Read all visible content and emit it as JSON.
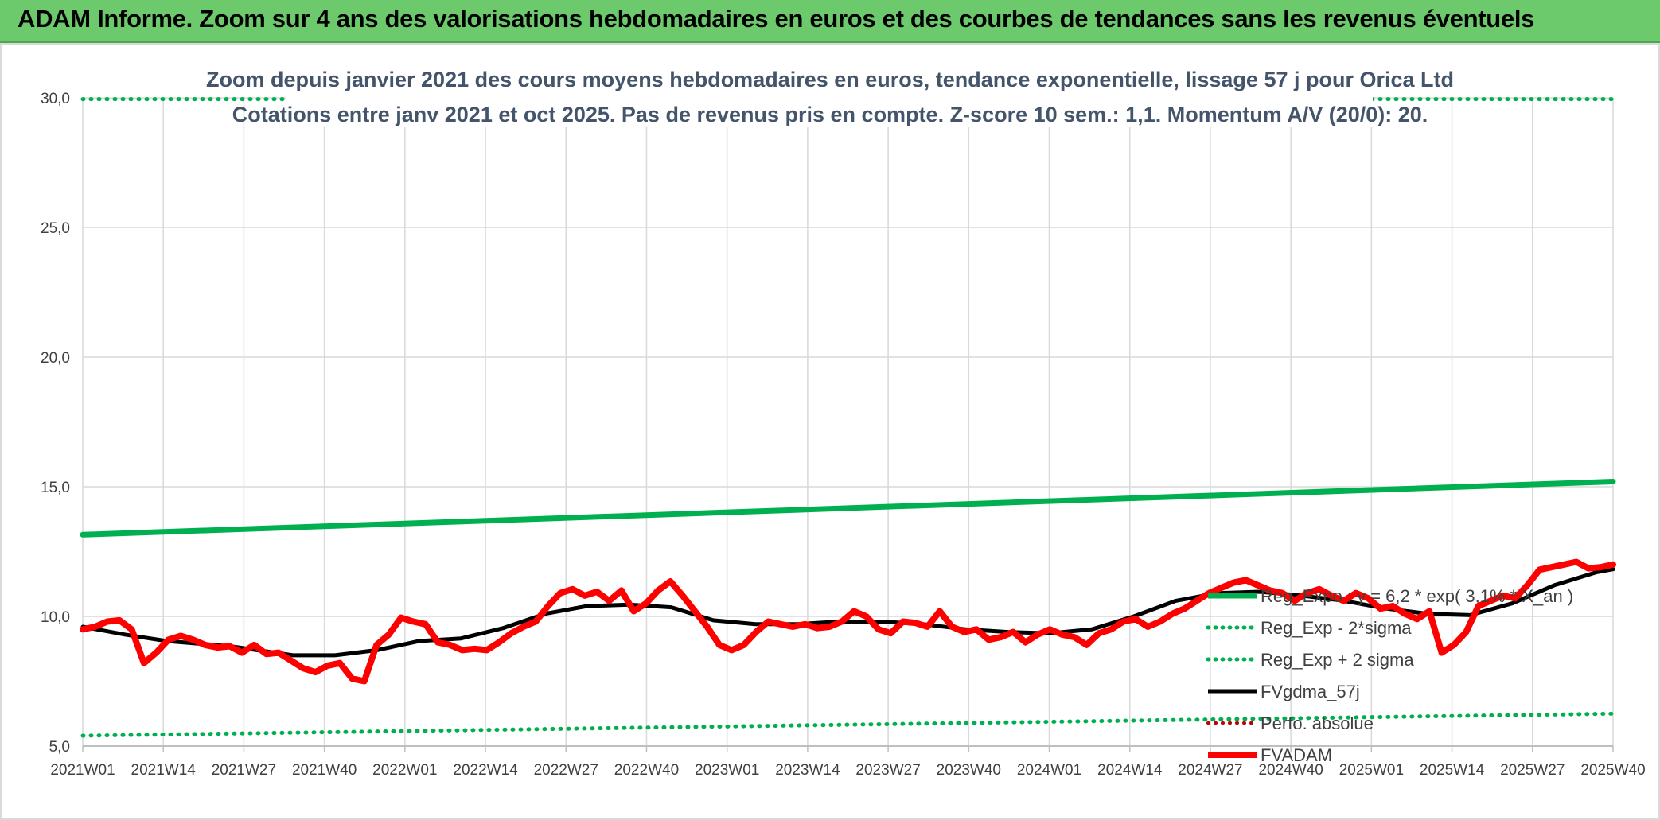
{
  "banner": {
    "title": "ADAM Informe. Zoom sur 4 ans des valorisations hebdomadaires en euros et des courbes de tendances sans les revenus éventuels"
  },
  "chart_data": {
    "type": "line",
    "title_lines": [
      "Zoom depuis janvier 2021 des cours moyens hebdomadaires en euros, tendance exponentielle, lissage 57 j pour Orica Ltd",
      "Cotations entre janv 2021 et oct 2025. Pas de revenus pris en compte. Z-score 10 sem.: 1,1. Momentum A/V (20/0): 20."
    ],
    "xlabel": "",
    "ylabel": "",
    "ylim": [
      5,
      30
    ],
    "yticks": [
      "5,0",
      "10,0",
      "15,0",
      "20,0",
      "25,0",
      "30,0"
    ],
    "ytick_values": [
      5,
      10,
      15,
      20,
      25,
      30
    ],
    "x_tick_labels": [
      "2021W01",
      "2021W14",
      "2021W27",
      "2021W40",
      "2022W01",
      "2022W14",
      "2022W27",
      "2022W40",
      "2023W01",
      "2023W14",
      "2023W27",
      "2023W40",
      "2024W01",
      "2024W14",
      "2024W27",
      "2024W40",
      "2025W01",
      "2025W14",
      "2025W27",
      "2025W40"
    ],
    "weeks_count": 247,
    "grid": true,
    "legend_position": "right",
    "series": [
      {
        "name": "Reg_Expo : y = 6,2 * exp( 3,1% *  X_an )",
        "style": "solid",
        "color": "#00b050",
        "width": 7,
        "knots": [
          [
            0,
            13.15
          ],
          [
            246,
            15.2
          ]
        ]
      },
      {
        "name": "Reg_Exp - 2*sigma",
        "style": "dotted",
        "color": "#00b050",
        "width": 5,
        "knots": [
          [
            0,
            5.4
          ],
          [
            246,
            6.25
          ]
        ]
      },
      {
        "name": "Reg_Exp + 2 sigma",
        "style": "dotted",
        "color": "#00b050",
        "width": 5,
        "knots": [
          [
            0,
            29.95
          ],
          [
            246,
            29.95
          ]
        ]
      },
      {
        "name": "FVgdma_57j",
        "style": "solid",
        "color": "#000000",
        "width": 5,
        "knots": [
          [
            0,
            9.6
          ],
          [
            10,
            9.3
          ],
          [
            20,
            9.05
          ],
          [
            35,
            8.85
          ],
          [
            50,
            8.5
          ],
          [
            60,
            8.5
          ],
          [
            70,
            8.7
          ],
          [
            80,
            9.05
          ],
          [
            90,
            9.15
          ],
          [
            100,
            9.55
          ],
          [
            110,
            10.1
          ],
          [
            120,
            10.4
          ],
          [
            130,
            10.45
          ],
          [
            140,
            10.35
          ],
          [
            150,
            9.85
          ],
          [
            160,
            9.7
          ],
          [
            170,
            9.7
          ],
          [
            180,
            9.8
          ],
          [
            190,
            9.8
          ],
          [
            200,
            9.7
          ],
          [
            210,
            9.5
          ],
          [
            220,
            9.4
          ],
          [
            230,
            9.35
          ],
          [
            240,
            9.5
          ],
          [
            250,
            10.0
          ],
          [
            260,
            10.6
          ],
          [
            270,
            10.9
          ],
          [
            280,
            10.95
          ],
          [
            290,
            10.8
          ],
          [
            300,
            10.6
          ],
          [
            310,
            10.3
          ],
          [
            320,
            10.1
          ],
          [
            330,
            10.05
          ],
          [
            340,
            10.5
          ],
          [
            350,
            11.2
          ],
          [
            360,
            11.7
          ],
          [
            364,
            11.82
          ]
        ]
      },
      {
        "name": "Perfo. absolue",
        "style": "dotted",
        "color": "#c00000",
        "width": 4,
        "knots": []
      },
      {
        "name": "FVADAM",
        "style": "solid",
        "color": "#ff0000",
        "width": 8,
        "knots": [
          [
            0,
            9.5
          ],
          [
            3,
            9.6
          ],
          [
            6,
            9.8
          ],
          [
            9,
            9.85
          ],
          [
            12,
            9.5
          ],
          [
            15,
            8.2
          ],
          [
            18,
            8.6
          ],
          [
            21,
            9.1
          ],
          [
            24,
            9.25
          ],
          [
            27,
            9.1
          ],
          [
            30,
            8.9
          ],
          [
            33,
            8.8
          ],
          [
            36,
            8.85
          ],
          [
            39,
            8.6
          ],
          [
            42,
            8.9
          ],
          [
            45,
            8.55
          ],
          [
            48,
            8.6
          ],
          [
            51,
            8.3
          ],
          [
            54,
            8.0
          ],
          [
            57,
            7.85
          ],
          [
            60,
            8.1
          ],
          [
            63,
            8.2
          ],
          [
            66,
            7.6
          ],
          [
            69,
            7.5
          ],
          [
            72,
            8.9
          ],
          [
            75,
            9.3
          ],
          [
            78,
            9.95
          ],
          [
            81,
            9.8
          ],
          [
            84,
            9.7
          ],
          [
            87,
            9.0
          ],
          [
            90,
            8.9
          ],
          [
            93,
            8.7
          ],
          [
            96,
            8.75
          ],
          [
            99,
            8.7
          ],
          [
            102,
            9.0
          ],
          [
            105,
            9.35
          ],
          [
            108,
            9.6
          ],
          [
            111,
            9.8
          ],
          [
            114,
            10.4
          ],
          [
            117,
            10.9
          ],
          [
            120,
            11.05
          ],
          [
            123,
            10.8
          ],
          [
            126,
            10.95
          ],
          [
            129,
            10.6
          ],
          [
            132,
            11.0
          ],
          [
            135,
            10.2
          ],
          [
            138,
            10.5
          ],
          [
            141,
            11.0
          ],
          [
            144,
            11.35
          ],
          [
            147,
            10.8
          ],
          [
            150,
            10.2
          ],
          [
            153,
            9.6
          ],
          [
            156,
            8.9
          ],
          [
            159,
            8.7
          ],
          [
            162,
            8.9
          ],
          [
            165,
            9.4
          ],
          [
            168,
            9.8
          ],
          [
            171,
            9.7
          ],
          [
            174,
            9.6
          ],
          [
            177,
            9.7
          ],
          [
            180,
            9.55
          ],
          [
            183,
            9.6
          ],
          [
            186,
            9.8
          ],
          [
            189,
            10.2
          ],
          [
            192,
            10.0
          ],
          [
            195,
            9.5
          ],
          [
            198,
            9.35
          ],
          [
            201,
            9.8
          ],
          [
            204,
            9.75
          ],
          [
            207,
            9.6
          ],
          [
            210,
            10.2
          ],
          [
            213,
            9.6
          ],
          [
            216,
            9.4
          ],
          [
            219,
            9.5
          ],
          [
            222,
            9.1
          ],
          [
            225,
            9.2
          ],
          [
            228,
            9.4
          ],
          [
            231,
            9.0
          ],
          [
            234,
            9.3
          ],
          [
            237,
            9.5
          ],
          [
            240,
            9.3
          ],
          [
            243,
            9.2
          ],
          [
            246,
            8.9
          ],
          [
            249,
            9.35
          ],
          [
            252,
            9.5
          ],
          [
            255,
            9.8
          ],
          [
            258,
            9.9
          ],
          [
            261,
            9.6
          ],
          [
            264,
            9.8
          ],
          [
            267,
            10.1
          ],
          [
            270,
            10.3
          ],
          [
            273,
            10.6
          ],
          [
            276,
            10.9
          ],
          [
            279,
            11.1
          ],
          [
            282,
            11.3
          ],
          [
            285,
            11.4
          ],
          [
            288,
            11.2
          ],
          [
            291,
            11.0
          ],
          [
            294,
            10.9
          ],
          [
            297,
            10.6
          ],
          [
            300,
            10.9
          ],
          [
            303,
            11.05
          ],
          [
            306,
            10.8
          ],
          [
            309,
            10.6
          ],
          [
            312,
            10.9
          ],
          [
            315,
            10.7
          ],
          [
            318,
            10.3
          ],
          [
            321,
            10.4
          ],
          [
            324,
            10.1
          ],
          [
            327,
            9.9
          ],
          [
            330,
            10.2
          ],
          [
            333,
            8.6
          ],
          [
            336,
            8.9
          ],
          [
            339,
            9.4
          ],
          [
            342,
            10.4
          ],
          [
            345,
            10.6
          ],
          [
            348,
            10.8
          ],
          [
            351,
            10.7
          ],
          [
            354,
            11.2
          ],
          [
            357,
            11.8
          ],
          [
            360,
            11.9
          ],
          [
            363,
            12.0
          ],
          [
            366,
            12.1
          ],
          [
            369,
            11.85
          ],
          [
            372,
            11.9
          ],
          [
            375,
            12.0
          ]
        ]
      }
    ]
  }
}
